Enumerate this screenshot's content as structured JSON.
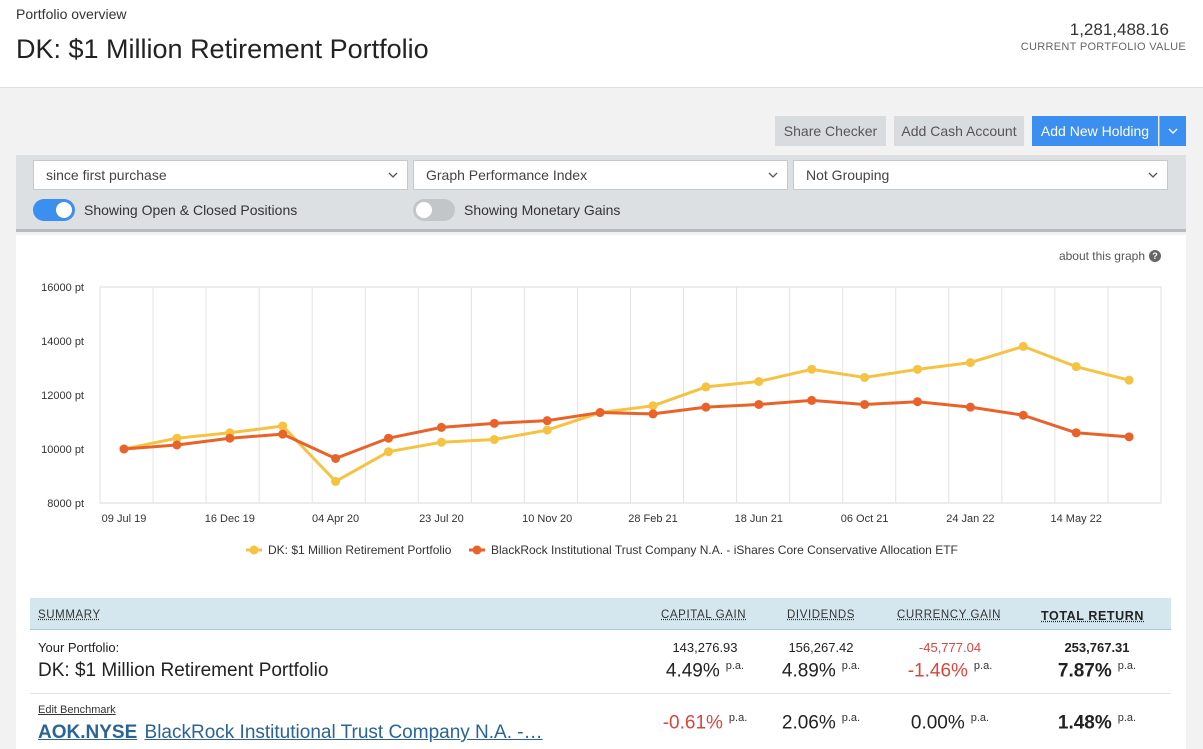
{
  "header": {
    "subtitle": "Portfolio overview",
    "title": "DK: $1 Million Retirement Portfolio",
    "portfolio_value": "1,281,488.16",
    "portfolio_value_label": "CURRENT PORTFOLIO VALUE"
  },
  "actions": {
    "share_checker": "Share Checker",
    "add_cash": "Add Cash Account",
    "add_holding": "Add New Holding"
  },
  "filters": {
    "period": "since first purchase",
    "graph_type": "Graph Performance Index",
    "grouping": "Not Grouping",
    "open_closed_label": "Showing Open & Closed Positions",
    "open_closed_on": true,
    "monetary_label": "Showing Monetary Gains",
    "monetary_on": false
  },
  "chart_meta": {
    "about_label": "about this graph"
  },
  "chart_data": {
    "type": "line",
    "x": [
      "09 Jul 19",
      "Sep 19",
      "16 Dec 19",
      "Feb 20",
      "04 Apr 20",
      "May 20",
      "23 Jul 20",
      "Sep 20",
      "10 Nov 20",
      "Jan 21",
      "28 Feb 21",
      "Apr 21",
      "18 Jun 21",
      "Aug 21",
      "06 Oct 21",
      "Dec 21",
      "24 Jan 22",
      "Apr 22",
      "14 May 22",
      "Jul 22"
    ],
    "x_tick_labels": [
      "09 Jul 19",
      "16 Dec 19",
      "04 Apr 20",
      "23 Jul 20",
      "10 Nov 20",
      "28 Feb 21",
      "18 Jun 21",
      "06 Oct 21",
      "24 Jan 22",
      "14 May 22"
    ],
    "y_ticks": [
      "16000 pt",
      "14000 pt",
      "12000 pt",
      "10000 pt",
      "8000 pt"
    ],
    "ylim": [
      8000,
      16000
    ],
    "grid": true,
    "legend_position": "bottom",
    "series": [
      {
        "name": "DK: $1 Million Retirement Portfolio",
        "color": "#f5c242",
        "values": [
          10000,
          10400,
          10600,
          10850,
          8800,
          9900,
          10250,
          10350,
          10700,
          11350,
          11600,
          12300,
          12500,
          12950,
          12650,
          12950,
          13200,
          13800,
          13050,
          12550
        ]
      },
      {
        "name": "BlackRock Institutional Trust Company N.A. - iShares Core Conservative Allocation ETF",
        "color": "#e8622a",
        "values": [
          10000,
          10150,
          10400,
          10550,
          9650,
          10400,
          10800,
          10950,
          11050,
          11350,
          11300,
          11550,
          11650,
          11800,
          11650,
          11750,
          11550,
          11250,
          10600,
          10450
        ]
      }
    ]
  },
  "summary": {
    "head": {
      "summary": "SUMMARY",
      "capital_gain": "CAPITAL GAIN",
      "dividends": "DIVIDENDS",
      "currency_gain": "CURRENCY GAIN",
      "total_return": "TOTAL RETURN"
    },
    "portfolio": {
      "label": "Your Portfolio:",
      "name": "DK: $1 Million Retirement Portfolio",
      "capital_gain_amount": "143,276.93",
      "capital_gain_pct": "4.49%",
      "dividends_amount": "156,267.42",
      "dividends_pct": "4.89%",
      "currency_gain_amount": "-45,777.04",
      "currency_gain_pct": "-1.46%",
      "total_amount": "253,767.31",
      "total_pct": "7.87%",
      "pa": "p.a."
    },
    "benchmark": {
      "edit_label": "Edit Benchmark",
      "ticker": "AOK.NYSE",
      "name": "BlackRock Institutional Trust Company N.A. -…",
      "capital_gain_pct": "-0.61%",
      "dividends_pct": "2.06%",
      "currency_gain_pct": "0.00%",
      "total_pct": "1.48%",
      "pa": "p.a."
    }
  }
}
